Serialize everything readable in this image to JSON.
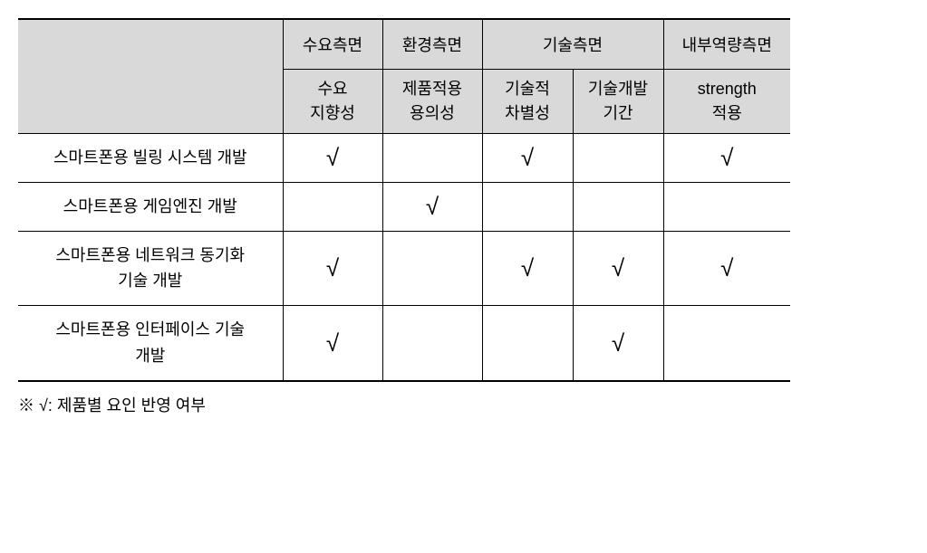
{
  "table": {
    "topHeaders": {
      "h1": "수요측면",
      "h2": "환경측면",
      "h3": "기술측면",
      "h4": "내부역량측면"
    },
    "subHeaders": {
      "s1": "수요\n지향성",
      "s2": "제품적용\n용의성",
      "s3": "기술적\n차별성",
      "s4": "기술개발\n기간",
      "s5": "strength\n적용"
    },
    "rows": [
      {
        "label": "스마트폰용 빌링 시스템 개발",
        "cells": [
          "√",
          "",
          "√",
          "",
          "√"
        ]
      },
      {
        "label": "스마트폰용 게임엔진 개발",
        "cells": [
          "",
          "√",
          "",
          "",
          ""
        ]
      },
      {
        "label": "스마트폰용 네트워크 동기화\n기술 개발",
        "cells": [
          "√",
          "",
          "√",
          "√",
          "√"
        ]
      },
      {
        "label": "스마트폰용 인터페이스 기술\n개발",
        "cells": [
          "√",
          "",
          "",
          "√",
          ""
        ]
      }
    ],
    "columns": {
      "label_width": 292,
      "c1_width": 110,
      "c2_width": 110,
      "c3_width": 100,
      "c4_width": 100,
      "c5_width": 140
    },
    "colors": {
      "header_bg": "#d9d9d9",
      "border": "#000000",
      "background": "#ffffff",
      "text": "#000000"
    },
    "checkmark": "√"
  },
  "legend": "※   √: 제품별 요인 반영 여부"
}
